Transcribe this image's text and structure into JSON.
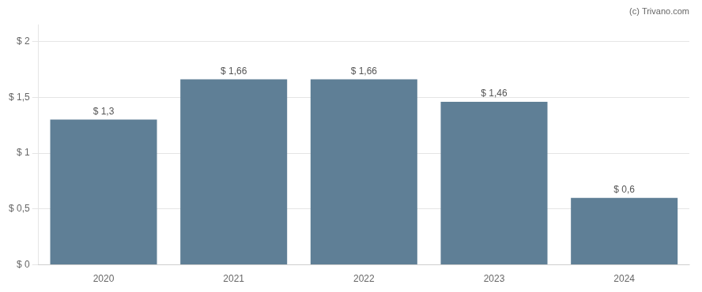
{
  "chart_data": {
    "type": "bar",
    "categories": [
      "2020",
      "2021",
      "2022",
      "2023",
      "2024"
    ],
    "values": [
      1.3,
      1.66,
      1.66,
      1.46,
      0.6
    ],
    "value_labels": [
      "$ 1,3",
      "$ 1,66",
      "$ 1,66",
      "$ 1,46",
      "$ 0,6"
    ],
    "color": "#5f7f96",
    "ylim": [
      0,
      2.15
    ],
    "yticks": [
      {
        "value": 0,
        "label": "$ 0"
      },
      {
        "value": 0.5,
        "label": "$ 0,5"
      },
      {
        "value": 1.0,
        "label": "$ 1"
      },
      {
        "value": 1.5,
        "label": "$ 1,5"
      },
      {
        "value": 2.0,
        "label": "$ 2"
      }
    ],
    "grid": true,
    "data_labels": true,
    "annotations": [
      "(c) Trivano.com"
    ]
  }
}
